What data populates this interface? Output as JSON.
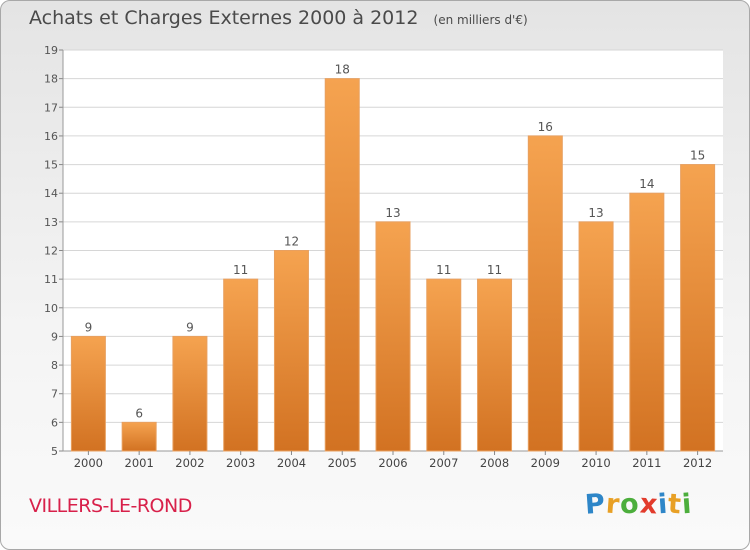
{
  "header": {
    "title": "Achats et Charges Externes 2000 à 2012",
    "unit": "(en milliers d'€)"
  },
  "footer": {
    "commune": "VILLERS-LE-ROND",
    "logo_letters": [
      "P",
      "r",
      "o",
      "x",
      "i",
      "t",
      "i"
    ],
    "logo_colors": [
      "#2e86c8",
      "#e8a025",
      "#4cae3c",
      "#e23b2c",
      "#2e86c8",
      "#e8a025",
      "#4cae3c"
    ]
  },
  "chart_data": {
    "type": "bar",
    "categories": [
      "2000",
      "2001",
      "2002",
      "2003",
      "2004",
      "2005",
      "2006",
      "2007",
      "2008",
      "2009",
      "2010",
      "2011",
      "2012"
    ],
    "values": [
      9,
      6,
      9,
      11,
      12,
      18,
      13,
      11,
      11,
      16,
      13,
      14,
      15
    ],
    "ylim": [
      5,
      19
    ],
    "yticks": [
      5,
      6,
      7,
      8,
      9,
      10,
      11,
      12,
      13,
      14,
      15,
      16,
      17,
      18,
      19
    ],
    "grid": true,
    "bar_color_light": "#f5a350",
    "bar_color_dark": "#d27222",
    "grid_color": "#d6d6d6"
  }
}
